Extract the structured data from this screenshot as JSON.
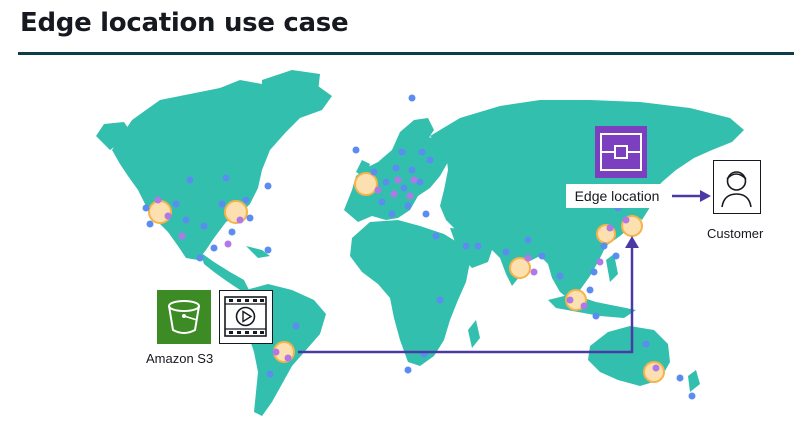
{
  "title": "Edge location use case",
  "labels": {
    "edge_location": "Edge location",
    "customer": "Customer",
    "amazon_s3": "Amazon S3"
  },
  "colors": {
    "land": "#33bfae",
    "title_rule": "#0f3b4a",
    "route_line": "#4b3aa6",
    "edge_icon_bg": "#7b3fbf",
    "s3_icon_bg": "#3d8b25",
    "pop_dot_blue": "#5b8cf0",
    "pop_dot_purple": "#b178e8",
    "regional_cache_ring": "#f7b24a"
  },
  "icons": [
    "edge-location-icon",
    "customer-icon",
    "s3-bucket-icon",
    "video-file-icon",
    "arrow-right-icon"
  ]
}
